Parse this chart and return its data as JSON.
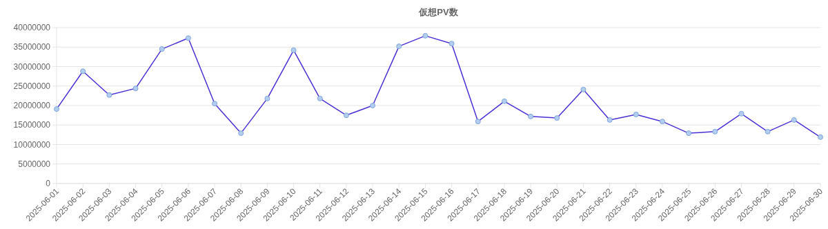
{
  "chart_data": {
    "type": "line",
    "title": "仮想PV数",
    "categories": [
      "2025-06-01",
      "2025-06-02",
      "2025-06-03",
      "2025-06-04",
      "2025-06-05",
      "2025-06-06",
      "2025-06-07",
      "2025-06-08",
      "2025-06-09",
      "2025-06-10",
      "2025-06-11",
      "2025-06-12",
      "2025-06-13",
      "2025-06-14",
      "2025-06-15",
      "2025-06-16",
      "2025-06-17",
      "2025-06-18",
      "2025-06-19",
      "2025-06-20",
      "2025-06-21",
      "2025-06-22",
      "2025-06-23",
      "2025-06-24",
      "2025-06-25",
      "2025-06-26",
      "2025-06-27",
      "2025-06-28",
      "2025-06-29",
      "2025-06-30"
    ],
    "series": [
      {
        "color": "#4b2fd6",
        "values": [
          19100000,
          28800000,
          22700000,
          24400000,
          34500000,
          37300000,
          20500000,
          12900000,
          21800000,
          34200000,
          21800000,
          17500000,
          20000000,
          35200000,
          37900000,
          35900000,
          15900000,
          21100000,
          17200000,
          16800000,
          24100000,
          16300000,
          17700000,
          15900000,
          12900000,
          13300000,
          17900000,
          13300000,
          16300000,
          11900000
        ]
      }
    ],
    "ylim": [
      0,
      40000000
    ],
    "yticks": [
      0,
      5000000,
      10000000,
      15000000,
      20000000,
      25000000,
      30000000,
      35000000,
      40000000
    ],
    "grid": "y",
    "marker": "circle",
    "line_style": "solid"
  }
}
